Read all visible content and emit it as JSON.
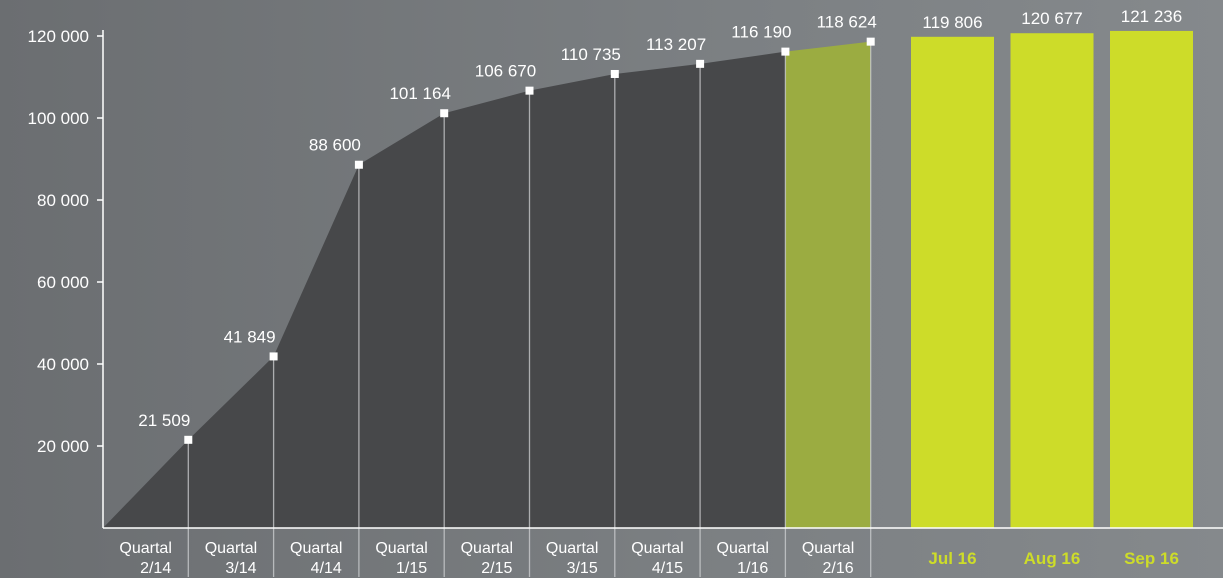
{
  "chart_data": {
    "type": "area",
    "x_categories": [
      [
        "Quartal",
        "2/14"
      ],
      [
        "Quartal",
        "3/14"
      ],
      [
        "Quartal",
        "4/14"
      ],
      [
        "Quartal",
        "1/15"
      ],
      [
        "Quartal",
        "2/15"
      ],
      [
        "Quartal",
        "3/15"
      ],
      [
        "Quartal",
        "4/15"
      ],
      [
        "Quartal",
        "1/16"
      ],
      [
        "Quartal",
        "2/16"
      ]
    ],
    "values": [
      21509,
      41849,
      88600,
      101164,
      106670,
      110735,
      113207,
      116190,
      118624
    ],
    "value_labels": [
      "21 509",
      "41 849",
      "88 600",
      "101 164",
      "106 670",
      "110 735",
      "113 207",
      "116 190",
      "118 624"
    ],
    "highlight_index": 8,
    "monthly_bars": {
      "categories": [
        "Jul 16",
        "Aug 16",
        "Sep 16"
      ],
      "values": [
        119806,
        120677,
        121236
      ],
      "value_labels": [
        "119 806",
        "120 677",
        "121 236"
      ]
    },
    "yticks": [
      20000,
      40000,
      60000,
      80000,
      100000,
      120000
    ],
    "ytick_labels": [
      "20 000",
      "40 000",
      "60 000",
      "80 000",
      "100 000",
      "120 000"
    ],
    "ylim": [
      0,
      120000
    ],
    "colors": {
      "area": "#47484a",
      "highlight": "#9fb03a",
      "bar": "#cddc29",
      "marker": "#ffffff",
      "axis": "#ffffff"
    }
  }
}
